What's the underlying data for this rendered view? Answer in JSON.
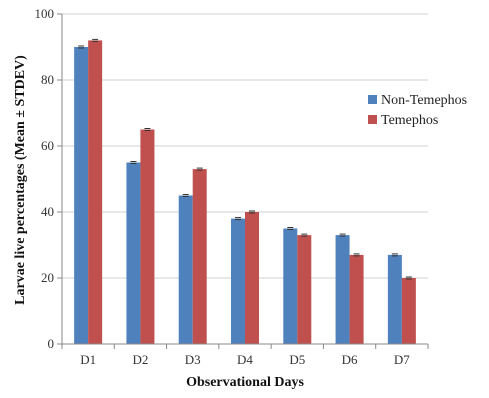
{
  "chart_data": {
    "type": "bar",
    "title": "",
    "xlabel": "Observational Days",
    "ylabel": "Larvae live percentages (Mean ± STDEV)",
    "categories": [
      "D1",
      "D2",
      "D3",
      "D4",
      "D5",
      "D6",
      "D7"
    ],
    "series": [
      {
        "name": "Non-Temephos",
        "color": "#4f81bd",
        "values": [
          90,
          55,
          45,
          38,
          35,
          33,
          27
        ]
      },
      {
        "name": "Temephos",
        "color": "#c0504d",
        "values": [
          92,
          65,
          53,
          40,
          33,
          27,
          20
        ]
      }
    ],
    "ylim": [
      0,
      100
    ],
    "yticks": [
      0,
      20,
      40,
      60,
      80,
      100
    ],
    "grid": true,
    "legend": "right",
    "error_bars": true
  }
}
